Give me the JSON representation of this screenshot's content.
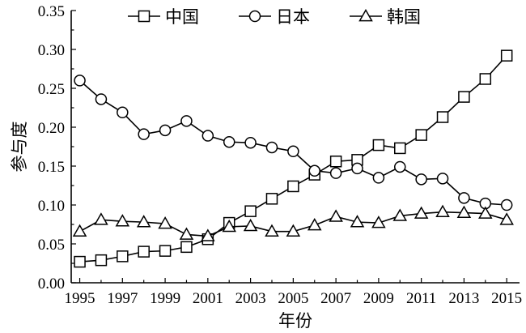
{
  "chart_data": {
    "type": "line",
    "xlabel": "年份",
    "ylabel": "参与度",
    "xlim": [
      1994.6,
      2015.6
    ],
    "ylim": [
      0,
      0.35
    ],
    "x_ticks": [
      1995,
      1997,
      1999,
      2001,
      2003,
      2005,
      2007,
      2009,
      2011,
      2013,
      2015
    ],
    "y_ticks": [
      "0.00",
      "0.05",
      "0.10",
      "0.15",
      "0.20",
      "0.25",
      "0.30",
      "0.35"
    ],
    "legend_position": "top",
    "grid": false,
    "x": [
      1995,
      1996,
      1997,
      1998,
      1999,
      2000,
      2001,
      2002,
      2003,
      2004,
      2005,
      2006,
      2007,
      2008,
      2009,
      2010,
      2011,
      2012,
      2013,
      2014,
      2015
    ],
    "series": [
      {
        "name": "中国",
        "marker": "square",
        "values": [
          0.027,
          0.029,
          0.034,
          0.04,
          0.041,
          0.046,
          0.056,
          0.077,
          0.092,
          0.108,
          0.124,
          0.139,
          0.156,
          0.158,
          0.177,
          0.173,
          0.19,
          0.213,
          0.239,
          0.262,
          0.292
        ]
      },
      {
        "name": "日本",
        "marker": "circle",
        "values": [
          0.26,
          0.236,
          0.219,
          0.191,
          0.196,
          0.208,
          0.189,
          0.181,
          0.18,
          0.174,
          0.169,
          0.144,
          0.141,
          0.147,
          0.135,
          0.149,
          0.133,
          0.134,
          0.109,
          0.102,
          0.1
        ]
      },
      {
        "name": "韩国",
        "marker": "triangle",
        "values": [
          0.066,
          0.081,
          0.079,
          0.078,
          0.076,
          0.062,
          0.06,
          0.072,
          0.073,
          0.066,
          0.066,
          0.074,
          0.085,
          0.078,
          0.077,
          0.086,
          0.089,
          0.091,
          0.09,
          0.089,
          0.081
        ]
      }
    ]
  }
}
